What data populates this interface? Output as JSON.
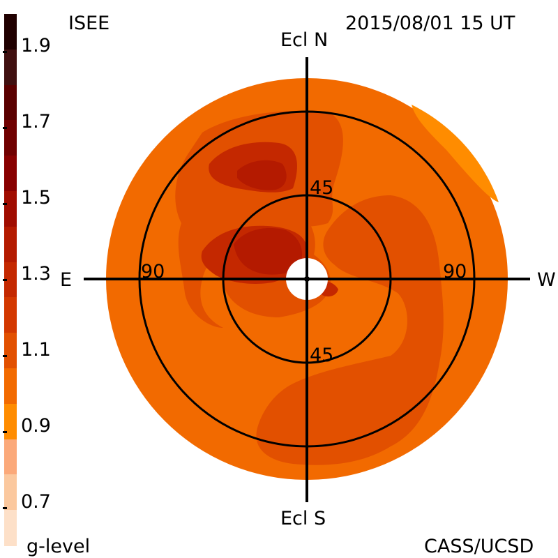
{
  "header": {
    "left_label": "ISEE",
    "timestamp": "2015/08/01 15 UT",
    "footer_left": "g-level",
    "footer_right": "CASS/UCSD"
  },
  "compass": {
    "north": "Ecl N",
    "south": "Ecl S",
    "east": "E",
    "west": "W"
  },
  "ring_labels": {
    "inner_top": "45",
    "inner_bottom": "45",
    "outer_left": "90",
    "outer_right": "90"
  },
  "colorbar": {
    "min": 0.6,
    "max": 2.0,
    "step": 0.1,
    "tick_labels": [
      "1.9",
      "1.7",
      "1.5",
      "1.3",
      "1.1",
      "0.9",
      "0.7"
    ],
    "colors": [
      "#200000",
      "#401010",
      "#5a0000",
      "#700000",
      "#880000",
      "#a00c00",
      "#b41a00",
      "#c42800",
      "#d33800",
      "#e25000",
      "#f26a00",
      "#ff8c00",
      "#fba97a",
      "#fbc89e",
      "#fde0c8"
    ]
  },
  "chart_data": {
    "type": "heatmap",
    "title": "2015/08/01 15 UT",
    "colorbar_label": "g-level",
    "value_range": [
      0.6,
      2.0
    ],
    "rings": [
      45,
      90
    ],
    "axes": {
      "top": "Ecl N",
      "bottom": "Ecl S",
      "left": "E",
      "right": "W"
    },
    "background_level": 1.0,
    "levels": [
      {
        "level": 0.9,
        "region": "northwest edge of disk"
      },
      {
        "level": 1.0,
        "region": "most of disk"
      },
      {
        "level": 1.1,
        "region": "enhancements north, west and south"
      },
      {
        "level": 1.2,
        "region": "near sun northeast"
      },
      {
        "level": 1.3,
        "region": "peaks northeast"
      }
    ]
  }
}
